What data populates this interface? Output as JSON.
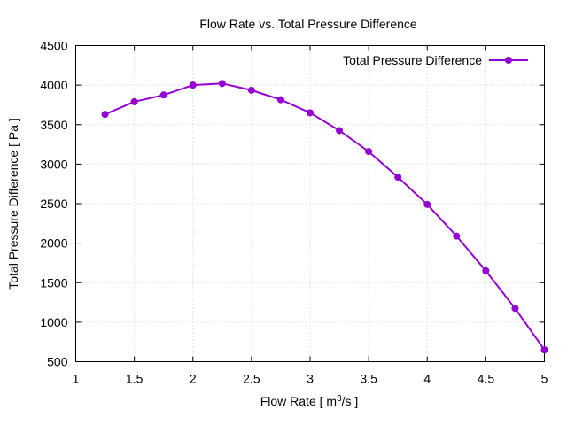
{
  "chart_data": {
    "type": "line",
    "title": "Flow Rate vs. Total Pressure Difference",
    "xlabel_prefix": "Flow Rate [ m",
    "xlabel_sup": "3",
    "xlabel_suffix": "/s ]",
    "ylabel": "Total Pressure Difference [ Pa ]",
    "xlim": [
      1,
      5
    ],
    "ylim": [
      500,
      4500
    ],
    "xticks": [
      1,
      1.5,
      2,
      2.5,
      3,
      3.5,
      4,
      4.5,
      5
    ],
    "xtick_labels": [
      "1",
      "1.5",
      "2",
      "2.5",
      "3",
      "3.5",
      "4",
      "4.5",
      "5"
    ],
    "yticks": [
      500,
      1000,
      1500,
      2000,
      2500,
      3000,
      3500,
      4000,
      4500
    ],
    "ytick_labels": [
      "500",
      "1000",
      "1500",
      "2000",
      "2500",
      "3000",
      "3500",
      "4000",
      "4500"
    ],
    "grid": true,
    "legend_position": "top-right",
    "series": [
      {
        "name": "Total Pressure Difference",
        "color": "#9400d3",
        "x": [
          1.25,
          1.5,
          1.75,
          2.0,
          2.25,
          2.5,
          2.75,
          3.0,
          3.25,
          3.5,
          3.75,
          4.0,
          4.25,
          4.5,
          4.75,
          5.0
        ],
        "y": [
          3630,
          3790,
          3875,
          4000,
          4020,
          3935,
          3815,
          3650,
          3425,
          3160,
          2835,
          2490,
          2090,
          1650,
          1175,
          650
        ]
      }
    ]
  }
}
